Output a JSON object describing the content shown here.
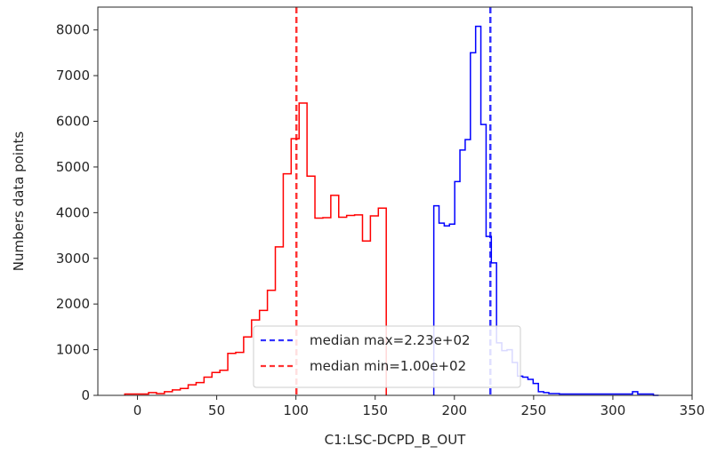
{
  "chart_data": {
    "type": "histogram",
    "xlabel": "C1:LSC-DCPD_B_OUT",
    "ylabel": "Numbers data points",
    "xlim": [
      -25,
      350
    ],
    "ylim": [
      0,
      8500
    ],
    "xticks": [
      0,
      50,
      100,
      150,
      200,
      250,
      300,
      350
    ],
    "yticks": [
      0,
      1000,
      2000,
      3000,
      4000,
      5000,
      6000,
      7000,
      8000
    ],
    "grid": false,
    "legend_position": "lower-center",
    "series": [
      {
        "name": "min",
        "color": "#ff0000",
        "bin_start": -8,
        "bin_width": 5,
        "values": [
          30,
          30,
          30,
          60,
          40,
          80,
          120,
          150,
          230,
          280,
          400,
          500,
          550,
          920,
          940,
          1280,
          1650,
          1860,
          2300,
          3250,
          4850,
          5620,
          6400,
          4800,
          3880,
          3890,
          4380,
          3900,
          3940,
          3950,
          3380,
          3930,
          4100
        ]
      },
      {
        "name": "max",
        "color": "#0000ff",
        "bin_start": 187,
        "bin_width": 3.3,
        "values": [
          4150,
          3770,
          3710,
          3750,
          4680,
          5370,
          5600,
          7500,
          8080,
          5930,
          3480,
          2900,
          1150,
          980,
          1000,
          720,
          420,
          400,
          350,
          260,
          80,
          60,
          40,
          40,
          30,
          30,
          30,
          30,
          30,
          30,
          30,
          30,
          30,
          30,
          30,
          30,
          30,
          30,
          80,
          30,
          30,
          30,
          0
        ]
      }
    ],
    "lines": [
      {
        "x": 222.7,
        "color": "#0000ff",
        "label": "median max=2.23e+02"
      },
      {
        "x": 100.3,
        "color": "#ff0000",
        "label": "median min=1.00e+02"
      }
    ]
  }
}
